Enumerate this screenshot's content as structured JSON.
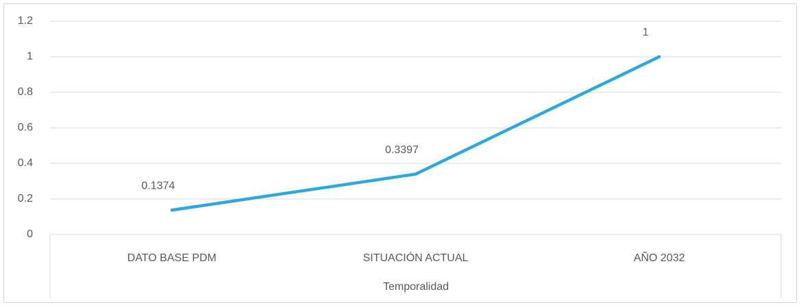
{
  "chart_data": {
    "type": "line",
    "categories": [
      "DATO BASE PDM",
      "SITUACIÓN ACTUAL",
      "AÑO 2032"
    ],
    "values": [
      0.1374,
      0.3397,
      1
    ],
    "color": "#2aa9e0",
    "xlabel": "Temporalidad",
    "ylim": [
      0,
      1.2
    ],
    "yticks": [
      0,
      0.2,
      0.4,
      0.6,
      0.8,
      1,
      1.2
    ],
    "grid": true,
    "data_labels": true
  }
}
